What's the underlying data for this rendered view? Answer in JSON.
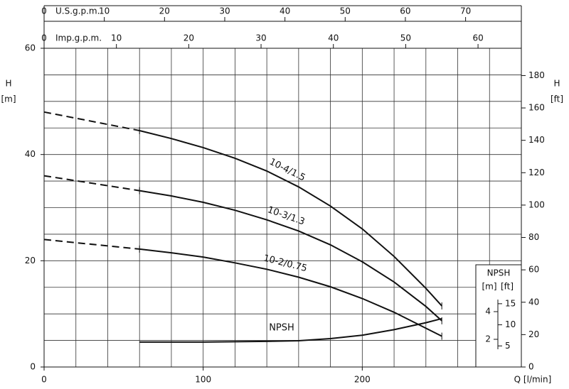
{
  "chart_data": {
    "type": "line",
    "xlabel": "Q [l/min]",
    "ylabel": "H",
    "yunit": "[m]",
    "y2label": "H",
    "y2unit": "[ft]",
    "xlim": [
      0,
      300
    ],
    "xticks": [
      0,
      100,
      200
    ],
    "xgrid": [
      0,
      20,
      40,
      60,
      80,
      100,
      120,
      140,
      160,
      180,
      200,
      220,
      240,
      260,
      280,
      300
    ],
    "ylim": [
      0,
      60
    ],
    "yticks": [
      0,
      20,
      40,
      60
    ],
    "ygrid": [
      0,
      5,
      10,
      15,
      20,
      25,
      30,
      35,
      40,
      45,
      50,
      55,
      60
    ],
    "y2lim": [
      0,
      196.85
    ],
    "y2ticks": [
      0,
      20,
      40,
      60,
      80,
      100,
      120,
      140,
      160,
      180
    ],
    "top_axes": [
      {
        "label": "U.S.g.p.m.",
        "lim": [
          0,
          79.26
        ],
        "ticks": [
          0,
          10,
          20,
          30,
          40,
          50,
          60,
          70
        ]
      },
      {
        "label": "Imp.g.p.m.",
        "lim": [
          0,
          65.99
        ],
        "ticks": [
          0,
          10,
          20,
          30,
          40,
          50,
          60
        ]
      }
    ],
    "npsh_axis": {
      "title": "NPSH",
      "unit": "[m]",
      "unit2": "[ft]",
      "lim": [
        0,
        23.03
      ],
      "ticks": [
        2,
        4
      ],
      "lim2": [
        0,
        75.55
      ],
      "ticks2": [
        5,
        10,
        15
      ]
    },
    "dashed_below_x": 60,
    "series": [
      {
        "name": "10-4/1.5",
        "color": "#111111",
        "x": [
          0,
          60,
          80,
          100,
          120,
          140,
          160,
          180,
          200,
          220,
          240,
          250
        ],
        "values": [
          48,
          44.5,
          43,
          41.3,
          39.3,
          36.9,
          33.9,
          30.3,
          26,
          20.8,
          14.8,
          11.5
        ]
      },
      {
        "name": "10-3/1.3",
        "color": "#111111",
        "x": [
          0,
          60,
          80,
          100,
          120,
          140,
          160,
          180,
          200,
          220,
          240,
          250
        ],
        "values": [
          36,
          33.2,
          32.2,
          31,
          29.5,
          27.7,
          25.6,
          23,
          19.8,
          16,
          11.4,
          8.7
        ]
      },
      {
        "name": "10-2/0.75",
        "color": "#111111",
        "x": [
          0,
          60,
          80,
          100,
          120,
          140,
          160,
          180,
          200,
          220,
          240,
          250
        ],
        "values": [
          24,
          22.2,
          21.5,
          20.7,
          19.6,
          18.4,
          16.9,
          15.1,
          12.9,
          10.3,
          7.3,
          5.8
        ]
      },
      {
        "name": "NPSH",
        "color": "#111111",
        "axis": "npsh",
        "x": [
          60,
          100,
          140,
          160,
          180,
          200,
          220,
          240,
          250
        ],
        "values": [
          1.8,
          1.8,
          1.85,
          1.9,
          2.05,
          2.3,
          2.7,
          3.2,
          3.5
        ]
      }
    ]
  }
}
